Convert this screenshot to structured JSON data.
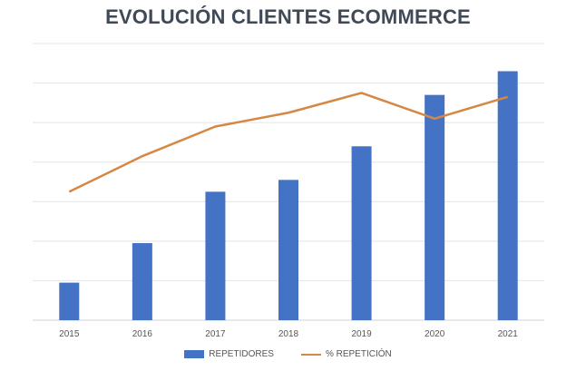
{
  "chart_data": {
    "type": "bar",
    "title": "EVOLUCIÓN CLIENTES ECOMMERCE",
    "categories": [
      "2015",
      "2016",
      "2017",
      "2018",
      "2019",
      "2020",
      "2021"
    ],
    "series": [
      {
        "name": "REPETIDORES",
        "type": "bar",
        "values": [
          9.5,
          19.5,
          32.5,
          35.5,
          44,
          57,
          63
        ],
        "color": "#4472c4"
      },
      {
        "name": "% REPETICIÓN",
        "type": "line",
        "values": [
          32.5,
          41.5,
          49,
          52.5,
          57.5,
          51,
          56.5
        ],
        "color": "#d58744"
      }
    ],
    "ylim": [
      0,
      70
    ],
    "grid": true,
    "legend": "bottom"
  }
}
